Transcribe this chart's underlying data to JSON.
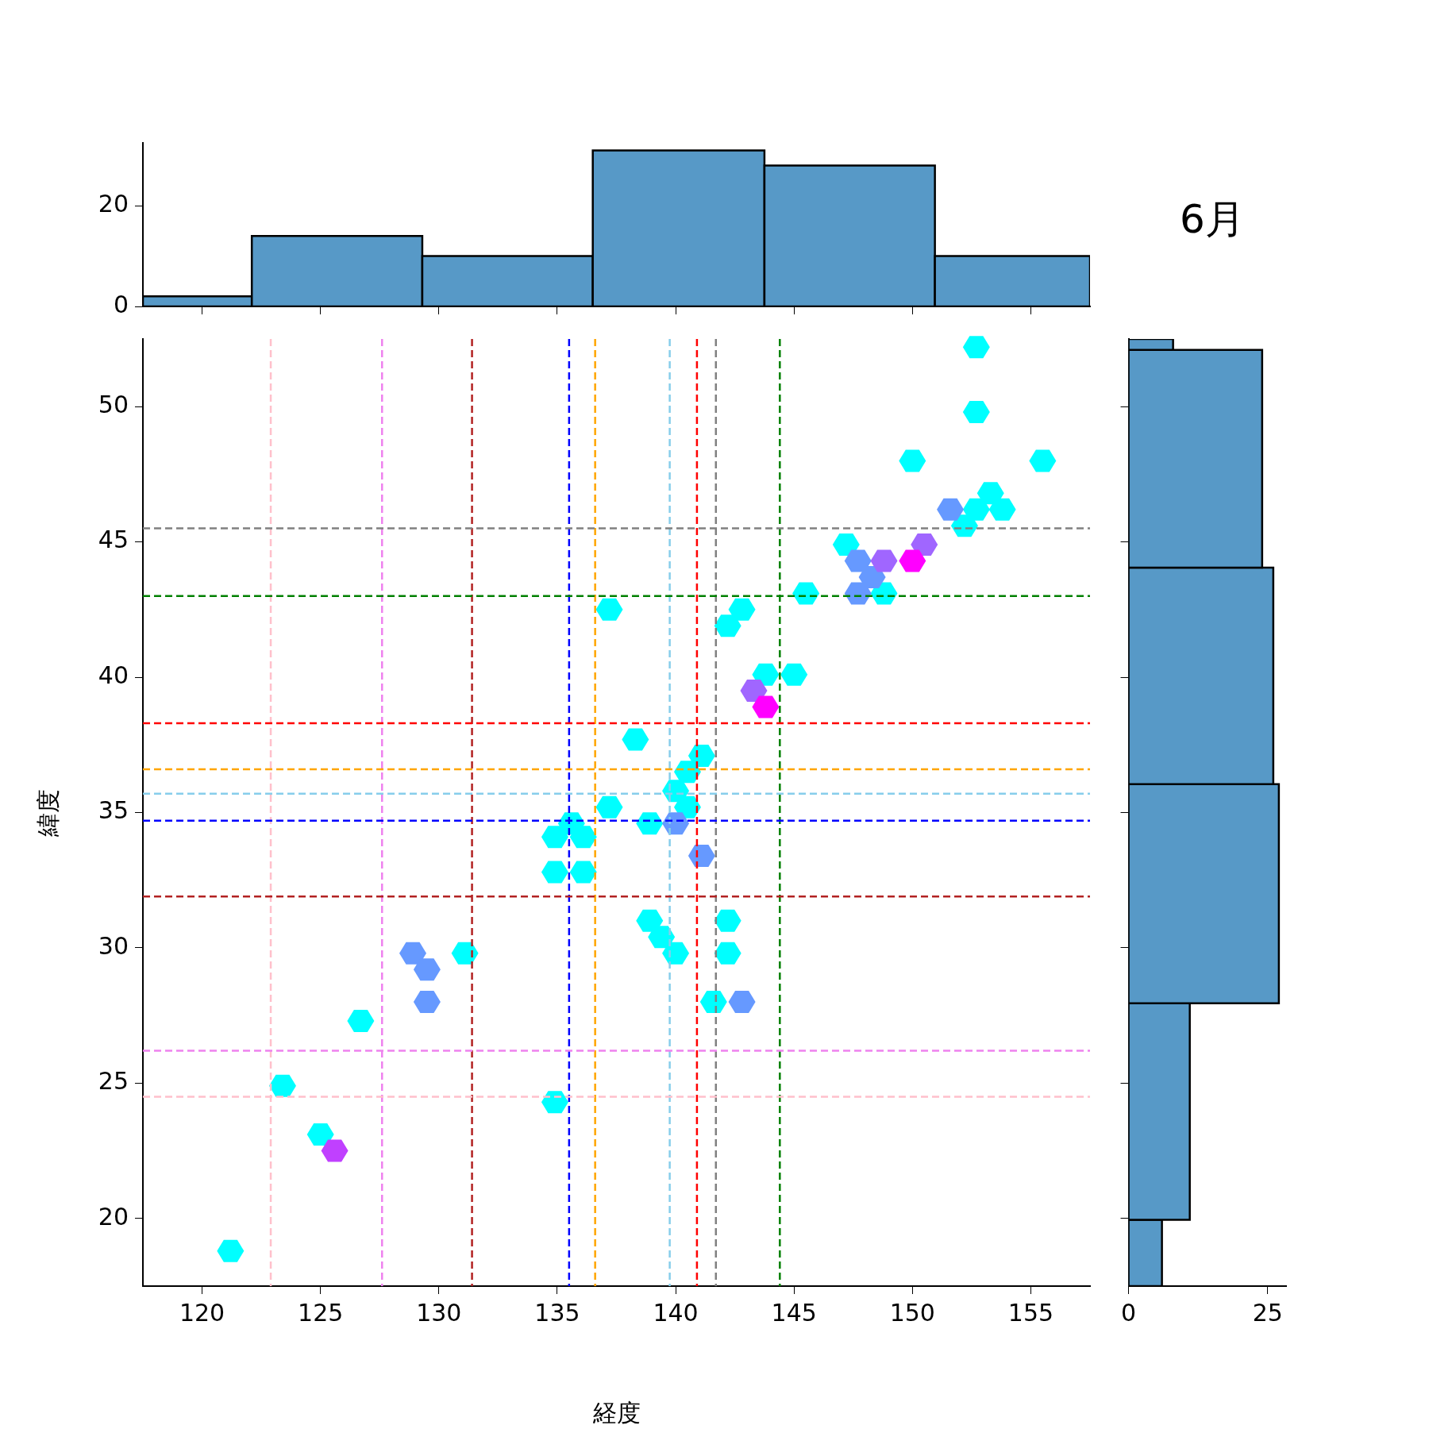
{
  "chart_data": [
    {
      "type": "histogram",
      "bins": [
        117.5,
        122.1,
        129.3,
        136.5,
        143.75,
        150.95,
        157.5
      ],
      "values": [
        2,
        14,
        10,
        31,
        28,
        10
      ],
      "color": "#5799c7",
      "xlim": [
        117.5,
        157.5
      ],
      "xticks": [
        {
          "value": 120,
          "label": null
        },
        {
          "value": 125,
          "label": null
        },
        {
          "value": 130,
          "label": null
        },
        {
          "value": 135,
          "label": null
        },
        {
          "value": 140,
          "label": null
        },
        {
          "value": 145,
          "label": null
        },
        {
          "value": 150,
          "label": null
        },
        {
          "value": 155,
          "label": null
        }
      ],
      "ylim": [
        0,
        32.5
      ],
      "yticks": [
        0,
        20
      ],
      "tick_labels": "y",
      "grid": false
    },
    {
      "type": "scatter",
      "xlabel": "経度",
      "ylabel": "緯度",
      "xlim": [
        117.5,
        157.5
      ],
      "ylim": [
        17.5,
        52.5
      ],
      "xticks": [
        120,
        125,
        130,
        135,
        140,
        145,
        150,
        155
      ],
      "yticks": [
        20,
        25,
        30,
        35,
        40,
        45,
        50
      ],
      "grid": false,
      "line_style": "dashed",
      "series": [
        {
          "color": "#00ffff",
          "x": [
            121.2,
            123.4,
            125.0,
            126.7,
            131.1,
            134.9,
            134.9,
            135.6,
            136.1,
            134.9,
            136.1,
            137.2,
            137.2,
            138.3,
            138.9,
            138.9,
            139.4,
            140.0,
            140.0,
            140.5,
            140.5,
            141.1,
            141.6,
            142.2,
            142.2,
            142.2,
            142.8,
            143.8,
            145.0,
            145.5,
            147.2,
            148.8,
            150.0,
            152.2,
            152.7,
            153.3,
            153.8,
            152.7,
            152.7,
            155.5
          ],
          "values": [
            18.8,
            24.9,
            23.1,
            27.3,
            29.8,
            24.3,
            34.1,
            34.6,
            34.1,
            32.8,
            32.8,
            35.2,
            42.5,
            37.7,
            34.6,
            31.0,
            30.4,
            29.8,
            35.8,
            36.5,
            35.2,
            37.1,
            28.0,
            31.0,
            29.8,
            41.9,
            42.5,
            40.1,
            40.1,
            43.1,
            44.9,
            43.1,
            48.0,
            45.6,
            46.2,
            46.8,
            46.2,
            49.8,
            52.2,
            48.0
          ]
        },
        {
          "color": "#6699ff",
          "x": [
            128.9,
            129.5,
            129.5,
            140.0,
            141.1,
            142.8,
            147.7,
            148.3,
            147.7,
            151.6
          ],
          "values": [
            29.8,
            29.2,
            28.0,
            34.6,
            33.4,
            28.0,
            44.3,
            43.7,
            43.1,
            46.2
          ]
        },
        {
          "color": "#a066ff",
          "x": [
            143.3,
            148.8,
            150.5
          ],
          "values": [
            39.5,
            44.3,
            44.9
          ]
        },
        {
          "color": "#c040ff",
          "x": [
            125.6
          ],
          "values": [
            22.5
          ]
        },
        {
          "color": "#ff00ff",
          "x": [
            143.8,
            150.0
          ],
          "values": [
            38.9,
            44.3
          ]
        }
      ],
      "ref_lines": [
        {
          "axis": "x",
          "value": 122.9,
          "color": "#ffc0cb"
        },
        {
          "axis": "x",
          "value": 127.6,
          "color": "#ee82ee"
        },
        {
          "axis": "x",
          "value": 131.4,
          "color": "#b22222"
        },
        {
          "axis": "x",
          "value": 135.5,
          "color": "#0000ff"
        },
        {
          "axis": "x",
          "value": 136.6,
          "color": "#ffa500"
        },
        {
          "axis": "x",
          "value": 139.75,
          "color": "#87ceeb"
        },
        {
          "axis": "x",
          "value": 140.9,
          "color": "#ff0000"
        },
        {
          "axis": "x",
          "value": 141.7,
          "color": "#808080"
        },
        {
          "axis": "x",
          "value": 144.4,
          "color": "#008000"
        },
        {
          "axis": "y",
          "value": 45.5,
          "color": "#808080"
        },
        {
          "axis": "y",
          "value": 43.0,
          "color": "#008000"
        },
        {
          "axis": "y",
          "value": 38.3,
          "color": "#ff0000"
        },
        {
          "axis": "y",
          "value": 36.6,
          "color": "#ffa500"
        },
        {
          "axis": "y",
          "value": 35.7,
          "color": "#87ceeb"
        },
        {
          "axis": "y",
          "value": 34.7,
          "color": "#0000ff"
        },
        {
          "axis": "y",
          "value": 31.9,
          "color": "#b22222"
        },
        {
          "axis": "y",
          "value": 26.2,
          "color": "#ee82ee"
        },
        {
          "axis": "y",
          "value": 24.5,
          "color": "#ffc0cb"
        }
      ]
    },
    {
      "type": "histogram",
      "title": "6月",
      "orientation": "horizontal",
      "bins": [
        17.5,
        19.95,
        27.95,
        36.05,
        44.05,
        52.1,
        52.5
      ],
      "values": [
        6,
        11,
        27,
        26,
        24,
        8
      ],
      "color": "#5799c7",
      "xlim": [
        0,
        28.3
      ],
      "xticks": [
        0,
        25
      ],
      "ylim": [
        17.5,
        52.5
      ],
      "yticks": [
        {
          "value": 20,
          "label": null
        },
        {
          "value": 25,
          "label": null
        },
        {
          "value": 30,
          "label": null
        },
        {
          "value": 35,
          "label": null
        },
        {
          "value": 40,
          "label": null
        },
        {
          "value": 45,
          "label": null
        },
        {
          "value": 50,
          "label": null
        }
      ],
      "tick_labels": "x",
      "grid": false
    }
  ]
}
